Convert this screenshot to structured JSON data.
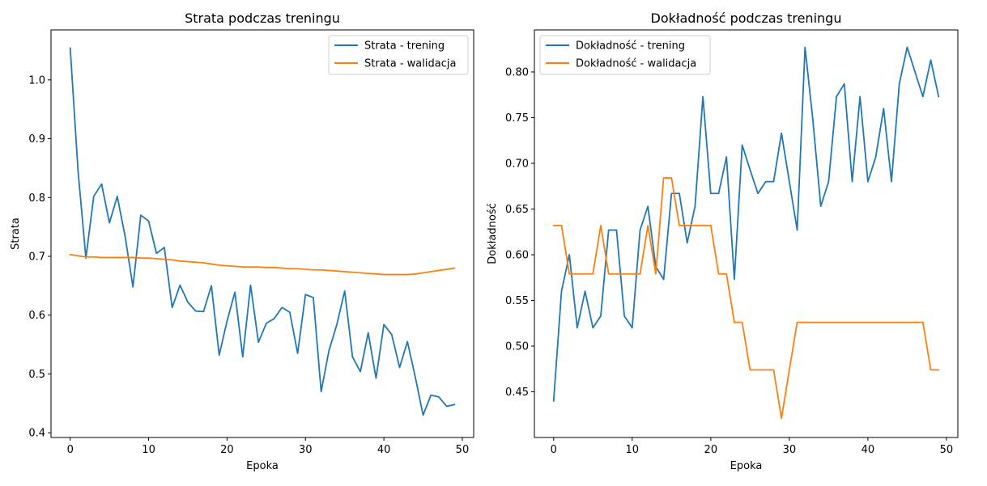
{
  "chart_data": [
    {
      "type": "line",
      "title": "Strata podczas treningu",
      "xlabel": "Epoka",
      "ylabel": "Strata",
      "xlim": [
        -2.45,
        51.45
      ],
      "ylim": [
        0.392,
        1.085
      ],
      "xticks": [
        0,
        10,
        20,
        30,
        40,
        50
      ],
      "yticks": [
        0.4,
        0.5,
        0.6,
        0.7,
        0.8,
        0.9,
        1.0
      ],
      "xtick_labels": [
        "0",
        "10",
        "20",
        "30",
        "40",
        "50"
      ],
      "ytick_labels": [
        "0.4",
        "0.5",
        "0.6",
        "0.7",
        "0.8",
        "0.9",
        "1.0"
      ],
      "legend_position": "upper right",
      "grid": false,
      "series": [
        {
          "name": "Strata - trening",
          "color": "#1f77b4",
          "x": [
            0,
            1,
            2,
            3,
            4,
            5,
            6,
            7,
            8,
            9,
            10,
            11,
            12,
            13,
            14,
            15,
            16,
            17,
            18,
            19,
            20,
            21,
            22,
            23,
            24,
            25,
            26,
            27,
            28,
            29,
            30,
            31,
            32,
            33,
            34,
            35,
            36,
            37,
            38,
            39,
            40,
            41,
            42,
            43,
            44,
            45,
            46,
            47,
            48,
            49
          ],
          "values": [
            1.054,
            0.845,
            0.697,
            0.802,
            0.823,
            0.757,
            0.802,
            0.734,
            0.648,
            0.77,
            0.76,
            0.705,
            0.715,
            0.613,
            0.651,
            0.622,
            0.607,
            0.606,
            0.65,
            0.532,
            0.59,
            0.639,
            0.529,
            0.651,
            0.554,
            0.586,
            0.594,
            0.613,
            0.605,
            0.535,
            0.635,
            0.63,
            0.47,
            0.54,
            0.584,
            0.641,
            0.529,
            0.504,
            0.57,
            0.493,
            0.584,
            0.567,
            0.511,
            0.555,
            0.495,
            0.43,
            0.464,
            0.461,
            0.445,
            0.448
          ]
        },
        {
          "name": "Strata - walidacja",
          "color": "#ff7f0e",
          "x": [
            0,
            1,
            2,
            3,
            4,
            5,
            6,
            7,
            8,
            9,
            10,
            11,
            12,
            13,
            14,
            15,
            16,
            17,
            18,
            19,
            20,
            21,
            22,
            23,
            24,
            25,
            26,
            27,
            28,
            29,
            30,
            31,
            32,
            33,
            34,
            35,
            36,
            37,
            38,
            39,
            40,
            41,
            42,
            43,
            44,
            45,
            46,
            47,
            48,
            49
          ],
          "values": [
            0.703,
            0.701,
            0.699,
            0.699,
            0.698,
            0.698,
            0.698,
            0.698,
            0.698,
            0.697,
            0.697,
            0.696,
            0.695,
            0.694,
            0.692,
            0.691,
            0.69,
            0.689,
            0.687,
            0.685,
            0.684,
            0.683,
            0.682,
            0.682,
            0.682,
            0.681,
            0.681,
            0.68,
            0.679,
            0.679,
            0.678,
            0.677,
            0.677,
            0.676,
            0.675,
            0.674,
            0.673,
            0.672,
            0.671,
            0.67,
            0.669,
            0.669,
            0.669,
            0.669,
            0.67,
            0.672,
            0.674,
            0.676,
            0.678,
            0.68
          ]
        }
      ]
    },
    {
      "type": "line",
      "title": "Dokładność podczas treningu",
      "xlabel": "Epoka",
      "ylabel": "Dokładność",
      "xlim": [
        -2.45,
        51.45
      ],
      "ylim": [
        0.4,
        0.846
      ],
      "xticks": [
        0,
        10,
        20,
        30,
        40,
        50
      ],
      "yticks": [
        0.45,
        0.5,
        0.55,
        0.6,
        0.65,
        0.7,
        0.75,
        0.8
      ],
      "xtick_labels": [
        "0",
        "10",
        "20",
        "30",
        "40",
        "50"
      ],
      "ytick_labels": [
        "0.45",
        "0.50",
        "0.55",
        "0.60",
        "0.65",
        "0.70",
        "0.75",
        "0.80"
      ],
      "legend_position": "upper left",
      "grid": false,
      "series": [
        {
          "name": "Dokładność - trening",
          "color": "#1f77b4",
          "x": [
            0,
            1,
            2,
            3,
            4,
            5,
            6,
            7,
            8,
            9,
            10,
            11,
            12,
            13,
            14,
            15,
            16,
            17,
            18,
            19,
            20,
            21,
            22,
            23,
            24,
            25,
            26,
            27,
            28,
            29,
            30,
            31,
            32,
            33,
            34,
            35,
            36,
            37,
            38,
            39,
            40,
            41,
            42,
            43,
            44,
            45,
            46,
            47,
            48,
            49
          ],
          "values": [
            0.44,
            0.56,
            0.6,
            0.52,
            0.56,
            0.52,
            0.533,
            0.627,
            0.627,
            0.533,
            0.52,
            0.627,
            0.653,
            0.587,
            0.573,
            0.667,
            0.667,
            0.613,
            0.653,
            0.773,
            0.667,
            0.667,
            0.707,
            0.573,
            0.72,
            0.693,
            0.667,
            0.68,
            0.68,
            0.733,
            0.68,
            0.627,
            0.827,
            0.747,
            0.653,
            0.68,
            0.773,
            0.787,
            0.68,
            0.773,
            0.68,
            0.707,
            0.76,
            0.68,
            0.787,
            0.827,
            0.8,
            0.773,
            0.813,
            0.773
          ]
        },
        {
          "name": "Dokładność - walidacja",
          "color": "#ff7f0e",
          "x": [
            0,
            1,
            2,
            3,
            4,
            5,
            6,
            7,
            8,
            9,
            10,
            11,
            12,
            13,
            14,
            15,
            16,
            17,
            18,
            19,
            20,
            21,
            22,
            23,
            24,
            25,
            26,
            27,
            28,
            29,
            30,
            31,
            32,
            33,
            34,
            35,
            36,
            37,
            38,
            39,
            40,
            41,
            42,
            43,
            44,
            45,
            46,
            47,
            48,
            49
          ],
          "values": [
            0.632,
            0.632,
            0.579,
            0.579,
            0.579,
            0.579,
            0.632,
            0.579,
            0.579,
            0.579,
            0.579,
            0.579,
            0.632,
            0.579,
            0.684,
            0.684,
            0.632,
            0.632,
            0.632,
            0.632,
            0.632,
            0.579,
            0.579,
            0.526,
            0.526,
            0.474,
            0.474,
            0.474,
            0.474,
            0.421,
            0.474,
            0.526,
            0.526,
            0.526,
            0.526,
            0.526,
            0.526,
            0.526,
            0.526,
            0.526,
            0.526,
            0.526,
            0.526,
            0.526,
            0.526,
            0.526,
            0.526,
            0.526,
            0.474,
            0.474
          ]
        }
      ]
    }
  ]
}
